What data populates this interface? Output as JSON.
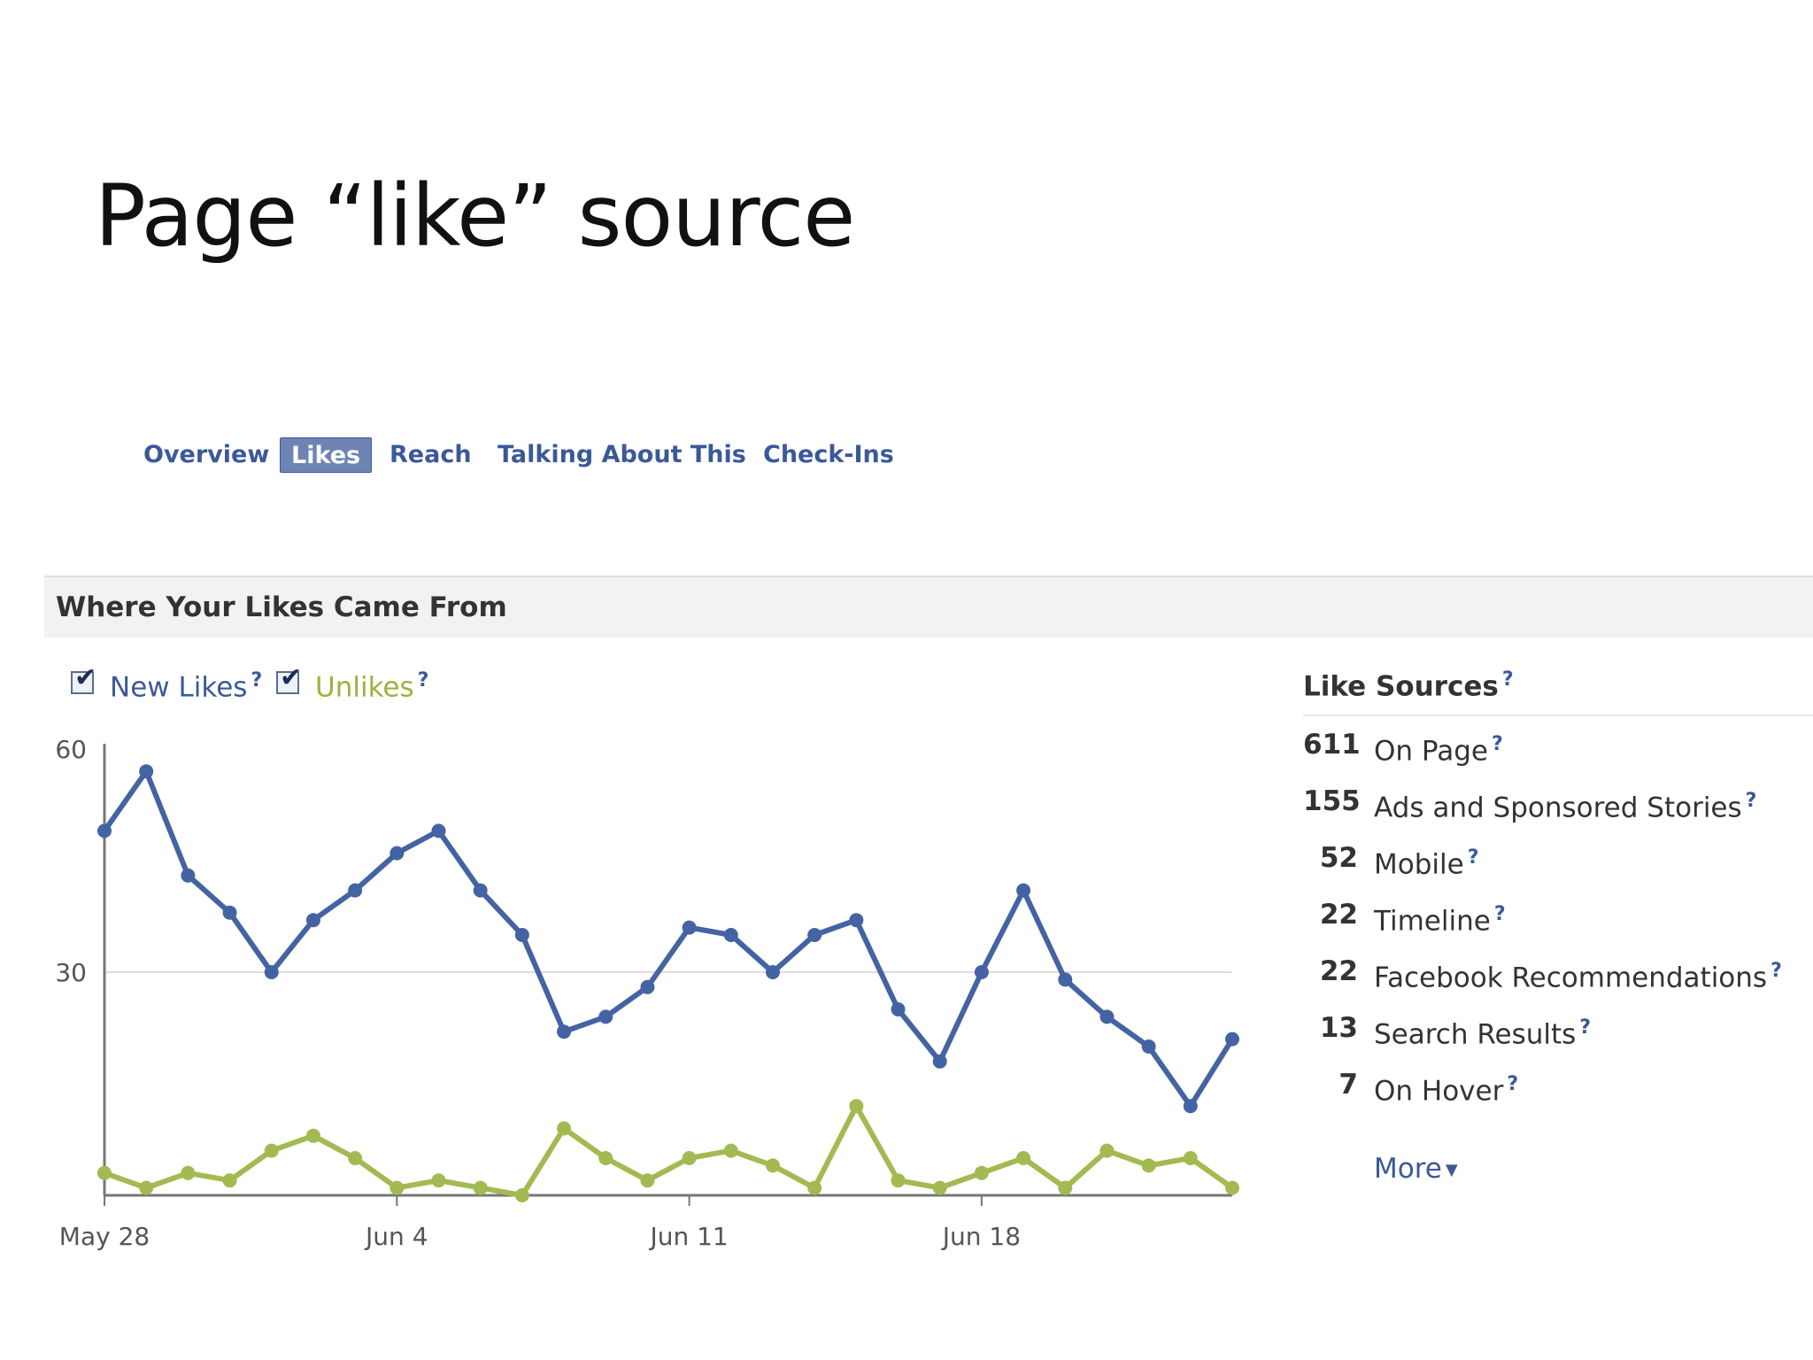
{
  "slide": {
    "title": "Page “like” source"
  },
  "tabs": [
    {
      "label": "Overview",
      "active": false
    },
    {
      "label": "Likes",
      "active": true
    },
    {
      "label": "Reach",
      "active": false
    },
    {
      "label": "Talking About This",
      "active": false
    },
    {
      "label": "Check-Ins",
      "active": false
    }
  ],
  "section": {
    "title": "Where Your Likes Came From"
  },
  "legend": {
    "new_likes": {
      "label": "New Likes",
      "checked": true,
      "color": "#3b5998"
    },
    "unlikes": {
      "label": "Unlikes",
      "checked": true,
      "color": "#9ab33c"
    },
    "help": "?"
  },
  "chart_data": {
    "type": "line",
    "title": "",
    "xlabel": "",
    "ylabel": "",
    "ylim": [
      0,
      60
    ],
    "y_ticks": [
      30,
      60
    ],
    "x_ticks": [
      "May 28",
      "Jun 4",
      "Jun 11",
      "Jun 18"
    ],
    "x_tick_index": [
      0,
      7,
      14,
      21
    ],
    "grid": true,
    "legend_position": "top-left",
    "series": [
      {
        "name": "New Likes",
        "color": "#4463a3",
        "values": [
          49,
          57,
          43,
          38,
          30,
          37,
          41,
          46,
          49,
          41,
          35,
          22,
          24,
          28,
          36,
          35,
          30,
          35,
          37,
          25,
          18,
          30,
          41,
          29,
          24,
          20,
          12,
          21
        ]
      },
      {
        "name": "Unlikes",
        "color": "#a3ba52",
        "values": [
          3,
          1,
          3,
          2,
          6,
          8,
          5,
          1,
          2,
          1,
          0,
          9,
          5,
          2,
          5,
          6,
          4,
          1,
          12,
          2,
          1,
          3,
          5,
          1,
          6,
          4,
          5,
          1
        ]
      }
    ]
  },
  "like_sources": {
    "title": "Like Sources",
    "rows": [
      {
        "count": "611",
        "label": "On Page"
      },
      {
        "count": "155",
        "label": "Ads and Sponsored Stories"
      },
      {
        "count": "52",
        "label": "Mobile"
      },
      {
        "count": "22",
        "label": "Timeline"
      },
      {
        "count": "22",
        "label": "Facebook Recommendations"
      },
      {
        "count": "13",
        "label": "Search Results"
      },
      {
        "count": "7",
        "label": "On Hover"
      }
    ],
    "more_label": "More"
  }
}
